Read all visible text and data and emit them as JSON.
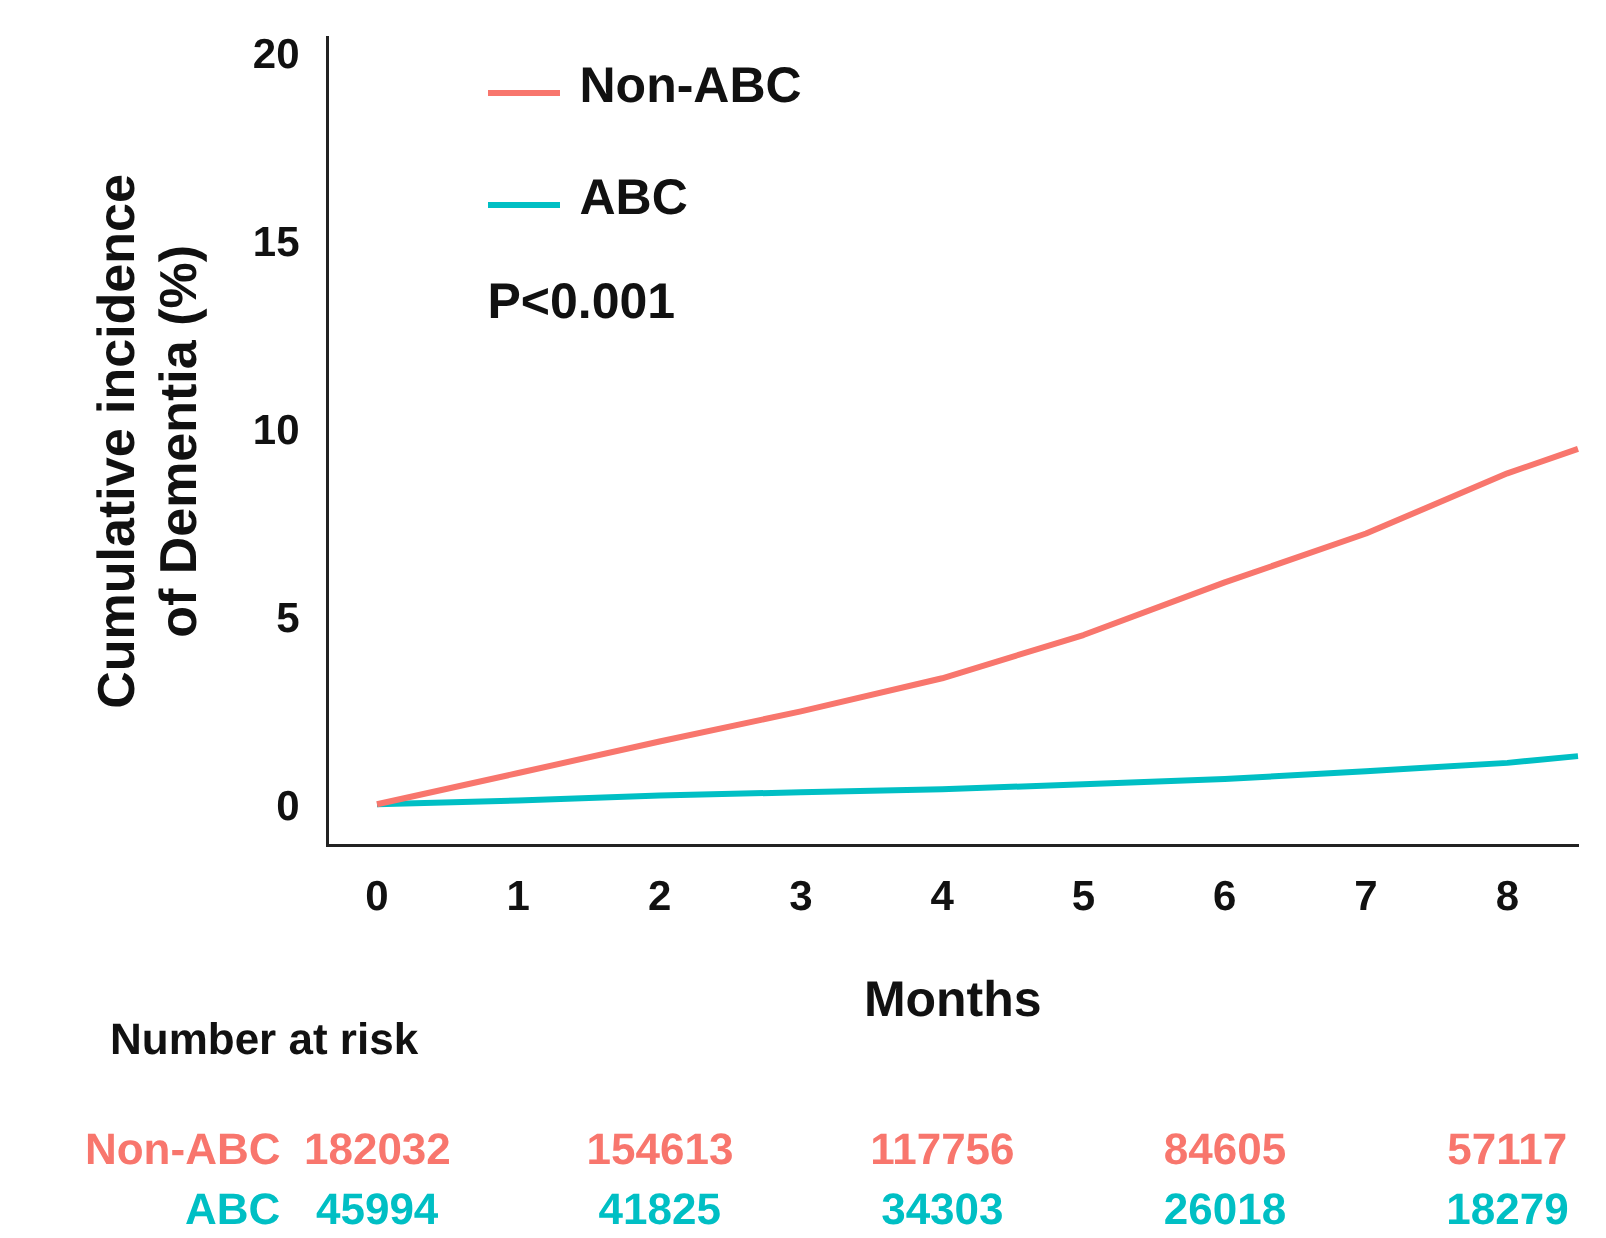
{
  "chart_data": {
    "type": "line",
    "xlabel": "Months",
    "ylabel": "Cumulative incidence of Dementia (%)",
    "x": [
      0,
      1,
      2,
      3,
      4,
      5,
      6,
      7,
      8,
      8.5
    ],
    "series": [
      {
        "name": "Non-ABC",
        "color": "#f8766d",
        "values": [
          0.1,
          0.93,
          1.77,
          2.57,
          3.45,
          4.6,
          6.0,
          7.3,
          8.9,
          9.55
        ]
      },
      {
        "name": "ABC",
        "color": "#00bfc4",
        "values": [
          0.1,
          0.2,
          0.33,
          0.42,
          0.5,
          0.63,
          0.77,
          0.98,
          1.2,
          1.38
        ]
      }
    ],
    "xlim": [
      -0.35,
      8.5
    ],
    "xticks": [
      0,
      1,
      2,
      3,
      4,
      5,
      6,
      7,
      8
    ],
    "ylim": [
      -1,
      20.5
    ],
    "yticks": [
      0,
      5,
      10,
      15,
      20
    ],
    "grid": false,
    "legend": "top left",
    "marker": "none",
    "line_style": "solid",
    "annotations": [
      "P<0.001",
      "Number at risk",
      "182032",
      "154613",
      "117756",
      "84605",
      "57117",
      "45994",
      "41825",
      "34303",
      "26018",
      "18279"
    ]
  }
}
